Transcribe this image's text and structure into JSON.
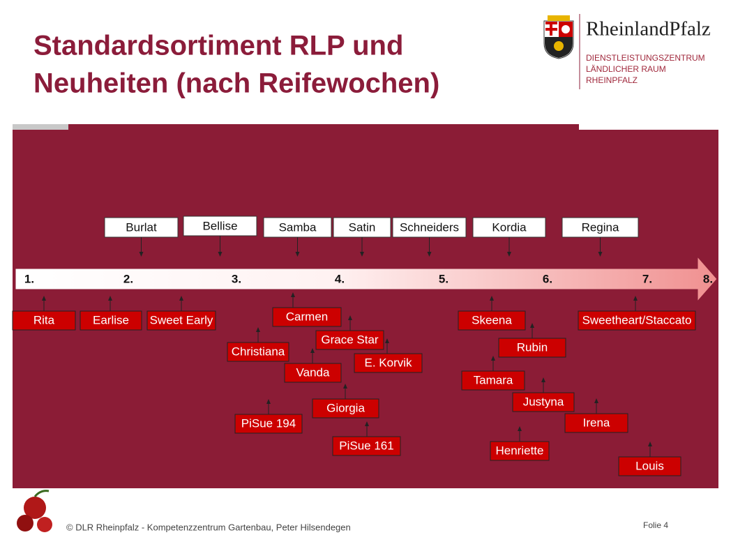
{
  "header": {
    "title_lines": [
      "Standardsortiment RLP und",
      "Neuheiten (nach Reifewochen)"
    ],
    "logo_name": "RheinlandPfalz",
    "org_lines": [
      "DIENSTLEISTUNGSZENTRUM",
      "LÄNDLICHER RAUM",
      "RHEINPFALZ"
    ]
  },
  "timeline": {
    "weeks": [
      "1.",
      "2.",
      "3.",
      "4.",
      "5.",
      "6.",
      "7.",
      "8."
    ],
    "top_varieties": [
      "Burlat",
      "Bellise",
      "Samba",
      "Satin",
      "Schneiders",
      "Kordia",
      "Regina"
    ],
    "bottom_varieties": [
      "Rita",
      "Earlise",
      "Sweet Early",
      "Carmen",
      "Christiana",
      "Grace Star",
      "E. Korvik",
      "Vanda",
      "Giorgia",
      "PiSue 194",
      "PiSue 161",
      "Skeena",
      "Rubin",
      "Tamara",
      "Justyna",
      "Irena",
      "Henriette",
      "Sweetheart/Staccato",
      "Louis"
    ]
  },
  "footer": {
    "text": "© DLR Rheinpfalz - Kompetenzzentrum Gartenbau, Peter Hilsendegen",
    "slide_number": "Folie 4"
  }
}
